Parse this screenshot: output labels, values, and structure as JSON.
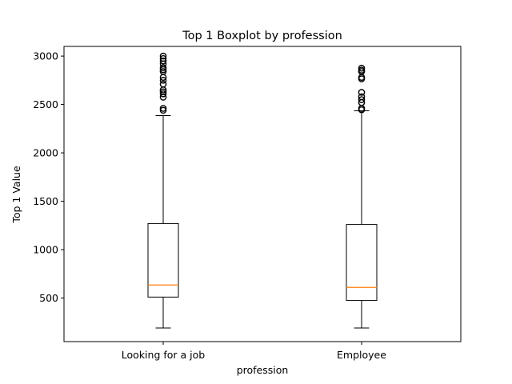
{
  "chart_data": {
    "type": "boxplot",
    "title": "Top 1 Boxplot by profession",
    "xlabel": "profession",
    "ylabel": "Top 1 Value",
    "ylim": [
      50,
      3100
    ],
    "yticks": [
      500,
      1000,
      1500,
      2000,
      2500,
      3000
    ],
    "categories": [
      "Looking for a job",
      "Employee"
    ],
    "series": [
      {
        "category": "Looking for a job",
        "whisker_low": 190,
        "q1": 510,
        "median": 635,
        "q3": 1270,
        "whisker_high": 2385,
        "outliers": [
          2440,
          2460,
          2575,
          2610,
          2630,
          2650,
          2710,
          2750,
          2780,
          2840,
          2860,
          2880,
          2920,
          2950,
          2975,
          3000
        ]
      },
      {
        "category": "Employee",
        "whisker_low": 190,
        "q1": 475,
        "median": 610,
        "q3": 1260,
        "whisker_high": 2435,
        "outliers": [
          2445,
          2460,
          2520,
          2550,
          2580,
          2625,
          2765,
          2780,
          2840,
          2855,
          2875
        ]
      }
    ],
    "colors": {
      "box": "#000000",
      "median": "#ff7f0e"
    },
    "grid": false
  }
}
